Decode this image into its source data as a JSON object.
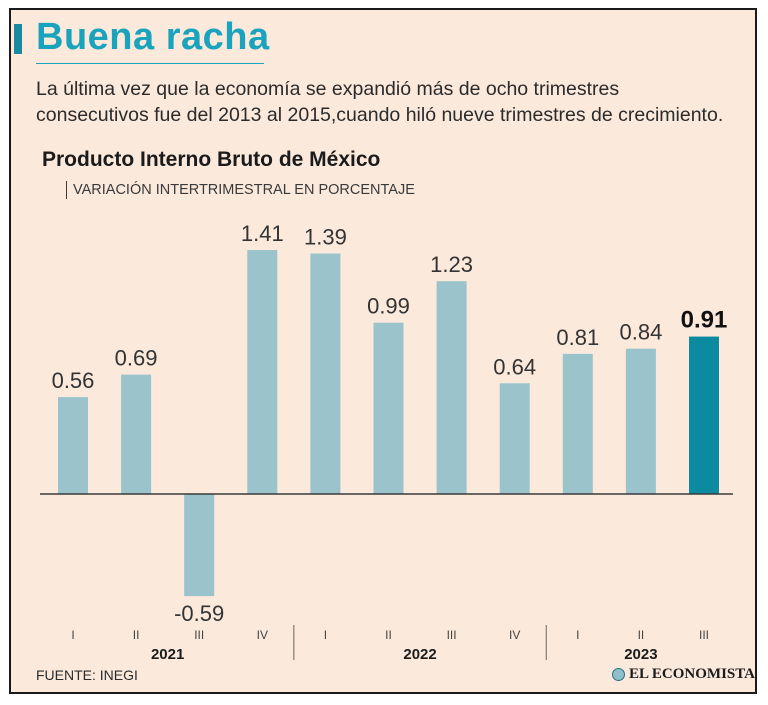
{
  "header": {
    "title": "Buena racha",
    "subtitle": "La última vez que la economía se expandió más de ocho trimestres consecutivos fue del 2013 al 2015,cuando hiló nueve trimestres de crecimiento."
  },
  "chart_data": {
    "type": "bar",
    "title": "Producto Interno Bruto de México",
    "subtitle": "VARIACIÓN INTERTRIMESTRAL EN PORCENTAJE",
    "categories": [
      "I",
      "II",
      "III",
      "IV",
      "I",
      "II",
      "III",
      "IV",
      "I",
      "II",
      "III"
    ],
    "years": [
      {
        "label": "2021",
        "quarters": 4
      },
      {
        "label": "2022",
        "quarters": 4
      },
      {
        "label": "2023",
        "quarters": 3
      }
    ],
    "values": [
      0.56,
      0.69,
      -0.59,
      1.41,
      1.39,
      0.99,
      1.23,
      0.64,
      0.81,
      0.84,
      0.91
    ],
    "value_labels": [
      "0.56",
      "0.69",
      "-0.59",
      "1.41",
      "1.39",
      "0.99",
      "1.23",
      "0.64",
      "0.81",
      "0.84",
      "0.91"
    ],
    "highlight_index": 10,
    "colors": {
      "bar": "#9ac3cb",
      "highlight": "#0c8aa0",
      "axis": "#3a3a3a"
    },
    "ylim": [
      -0.59,
      1.41
    ],
    "xlabel": "",
    "ylabel": ""
  },
  "footer": {
    "source": "FUENTE: INEGI",
    "brand": "EL ECONOMISTA",
    "brand_icon": "globe-icon"
  }
}
